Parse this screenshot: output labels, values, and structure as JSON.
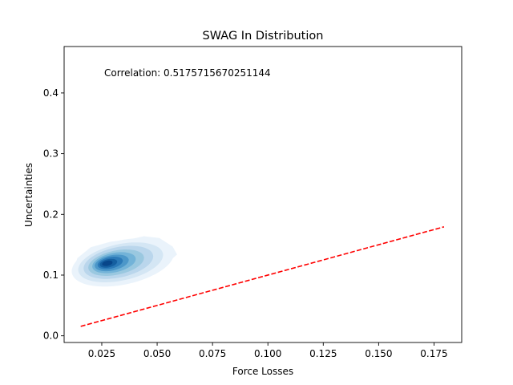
{
  "chart_data": {
    "type": "kde-contour",
    "title": "SWAG In Distribution",
    "xlabel": "Force Losses",
    "ylabel": "Uncertainties",
    "xlim": [
      0.008,
      0.1875
    ],
    "ylim": [
      -0.011,
      0.4765
    ],
    "xticks": [
      0.025,
      0.05,
      0.075,
      0.1,
      0.125,
      0.15,
      0.175
    ],
    "xtick_labels": [
      "0.025",
      "0.050",
      "0.075",
      "0.100",
      "0.125",
      "0.150",
      "0.175"
    ],
    "yticks": [
      0.0,
      0.1,
      0.2,
      0.3,
      0.4
    ],
    "ytick_labels": [
      "0.0",
      "0.1",
      "0.2",
      "0.3",
      "0.4"
    ],
    "annotation": "Correlation: 0.5175715670251144",
    "grid": false,
    "legend": "none",
    "reference_line": {
      "style": "dashed",
      "color": "#ff0000",
      "x": [
        0.0155,
        0.1795
      ],
      "y": [
        0.0155,
        0.1795
      ]
    },
    "density": {
      "colormap": [
        "#eaf3fb",
        "#d4e6f4",
        "#bad6ec",
        "#9ac8e0",
        "#73b3d8",
        "#4c97c9",
        "#2c7ab8",
        "#155fa0",
        "#08468a"
      ],
      "levels": [
        {
          "cx": 0.0345,
          "cy": 0.121,
          "rx": 0.0235,
          "ry": 0.0365,
          "rot": -12
        },
        {
          "cx": 0.0335,
          "cy": 0.121,
          "rx": 0.0195,
          "ry": 0.03,
          "rot": -12
        },
        {
          "cx": 0.0325,
          "cy": 0.121,
          "rx": 0.016,
          "ry": 0.025,
          "rot": -12
        },
        {
          "cx": 0.0315,
          "cy": 0.1205,
          "rx": 0.0128,
          "ry": 0.02,
          "rot": -12
        },
        {
          "cx": 0.0305,
          "cy": 0.1205,
          "rx": 0.01,
          "ry": 0.016,
          "rot": -12
        },
        {
          "cx": 0.0295,
          "cy": 0.12,
          "rx": 0.0078,
          "ry": 0.0125,
          "rot": -12
        },
        {
          "cx": 0.0288,
          "cy": 0.12,
          "rx": 0.0058,
          "ry": 0.0095,
          "rot": -12
        },
        {
          "cx": 0.028,
          "cy": 0.1195,
          "rx": 0.004,
          "ry": 0.0068,
          "rot": -12
        },
        {
          "cx": 0.0275,
          "cy": 0.1195,
          "rx": 0.0024,
          "ry": 0.0042,
          "rot": -12
        }
      ],
      "outer_lobe": [
        [
          0.012,
          0.108
        ],
        [
          0.014,
          0.128
        ],
        [
          0.02,
          0.146
        ],
        [
          0.029,
          0.155
        ],
        [
          0.038,
          0.159
        ],
        [
          0.044,
          0.164
        ],
        [
          0.051,
          0.161
        ],
        [
          0.057,
          0.147
        ],
        [
          0.059,
          0.134
        ],
        [
          0.056,
          0.124
        ],
        [
          0.046,
          0.109
        ],
        [
          0.034,
          0.093
        ],
        [
          0.023,
          0.087
        ],
        [
          0.015,
          0.092
        ]
      ]
    }
  }
}
